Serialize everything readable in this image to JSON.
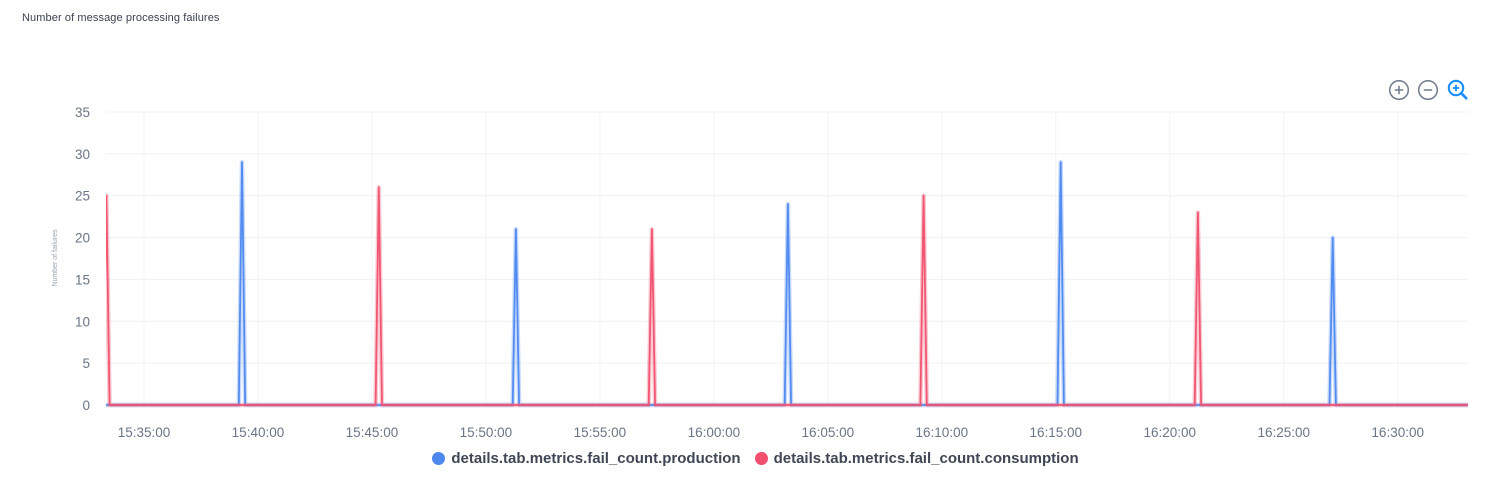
{
  "title": "Number of message processing failures",
  "toolbar": {
    "zoom_in_icon": "circled-plus",
    "zoom_out_icon": "circled-minus",
    "zoom_select_icon": "magnifier-plus",
    "active_color": "#1890ff",
    "inactive_color": "#6e7b8b"
  },
  "chart_data": {
    "type": "line",
    "title": "Number of message processing failures",
    "ylabel": "Number of failures",
    "ylim": [
      0,
      35
    ],
    "y_ticks": [
      0,
      5,
      10,
      15,
      20,
      25,
      30,
      35
    ],
    "x_ticks": [
      "15:35:00",
      "15:40:00",
      "15:45:00",
      "15:50:00",
      "15:55:00",
      "16:00:00",
      "16:05:00",
      "16:10:00",
      "16:15:00",
      "16:20:00",
      "16:25:00",
      "16:30:00"
    ],
    "x_domain": [
      "15:33:20",
      "16:33:05"
    ],
    "grid": true,
    "legend_position": "bottom",
    "series": [
      {
        "name": "details.tab.metrics.fail_count.production",
        "color": "#4d88ef",
        "baseline": 0,
        "spikes": [
          {
            "time": "15:39:18",
            "value": 29
          },
          {
            "time": "15:51:19",
            "value": 21
          },
          {
            "time": "16:03:15",
            "value": 24
          },
          {
            "time": "16:15:13",
            "value": 29
          },
          {
            "time": "16:27:09",
            "value": 20
          }
        ]
      },
      {
        "name": "details.tab.metrics.fail_count.consumption",
        "color": "#f0506e",
        "baseline": 0,
        "spikes": [
          {
            "time": "15:33:21",
            "value": 25
          },
          {
            "time": "15:45:18",
            "value": 26
          },
          {
            "time": "15:57:17",
            "value": 21
          },
          {
            "time": "16:09:12",
            "value": 25
          },
          {
            "time": "16:21:14",
            "value": 23
          }
        ]
      }
    ]
  },
  "legend": {
    "items": [
      {
        "label": "details.tab.metrics.fail_count.production",
        "color": "#4d88ef"
      },
      {
        "label": "details.tab.metrics.fail_count.consumption",
        "color": "#f0506e"
      }
    ]
  }
}
